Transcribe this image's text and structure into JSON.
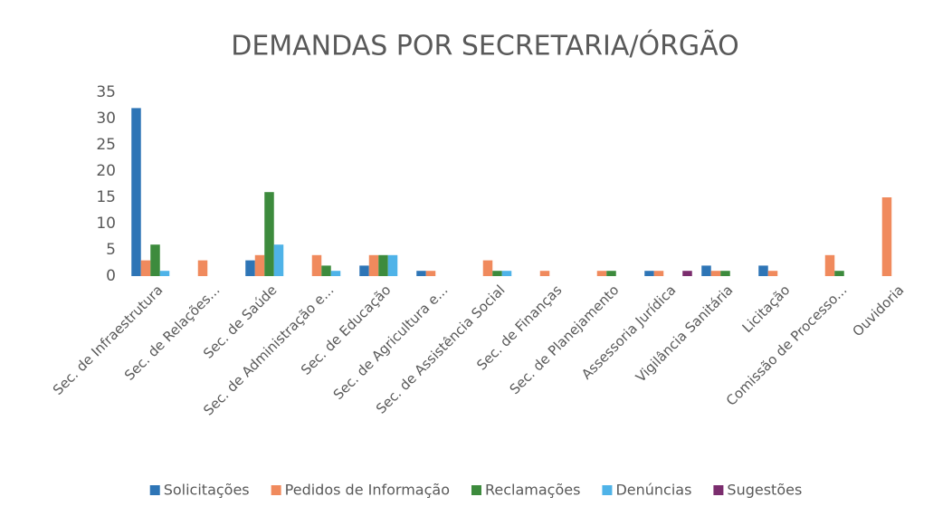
{
  "chart_data": {
    "type": "bar",
    "title": "DEMANDAS POR SECRETARIA/ÓRGÃO",
    "categories": [
      "Sec. de Infraestrutura",
      "Sec. de Relações...",
      "Sec. de Saúde",
      "Sec. de Administração e...",
      "Sec. de Educação",
      "Sec. de Agricultura e...",
      "Sec. de Assistência Social",
      "Sec. de Finanças",
      "Sec. de Planejamento",
      "Assessoria Jurídica",
      "Vigilância Sanitária",
      "Licitação",
      "Comissão de Processo...",
      "Ouvidoria"
    ],
    "series": [
      {
        "name": "Solicitações",
        "color": "#2e75b6",
        "values": [
          32,
          0,
          3,
          0,
          2,
          1,
          0,
          0,
          0,
          1,
          2,
          2,
          0,
          0
        ]
      },
      {
        "name": "Pedidos de Informação",
        "color": "#f08a5d",
        "values": [
          3,
          3,
          4,
          4,
          4,
          1,
          3,
          1,
          1,
          1,
          1,
          1,
          4,
          15
        ]
      },
      {
        "name": "Reclamações",
        "color": "#3d8b3d",
        "values": [
          6,
          0,
          16,
          2,
          4,
          0,
          1,
          0,
          1,
          0,
          1,
          0,
          1,
          0
        ]
      },
      {
        "name": "Denúncias",
        "color": "#4fb3e8",
        "values": [
          1,
          0,
          6,
          1,
          4,
          0,
          1,
          0,
          0,
          0,
          0,
          0,
          0,
          0
        ]
      },
      {
        "name": "Sugestões",
        "color": "#7b2d6e",
        "values": [
          0,
          0,
          0,
          0,
          0,
          0,
          0,
          0,
          0,
          1,
          0,
          0,
          0,
          0
        ]
      }
    ],
    "ylim": [
      0,
      35
    ],
    "yticks": [
      0,
      5,
      10,
      15,
      20,
      25,
      30,
      35
    ],
    "grid": false,
    "legend": "bottom"
  }
}
